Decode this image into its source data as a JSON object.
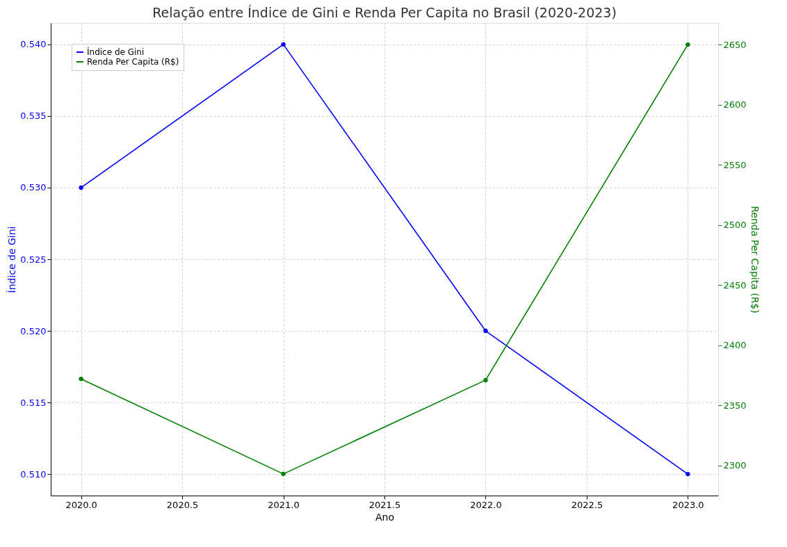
{
  "chart_data": {
    "type": "line",
    "title": "Relação entre Índice de Gini e Renda Per Capita no Brasil (2020-2023)",
    "xlabel": "Ano",
    "ylabel": "Índice de Gini",
    "y2label": "Renda Per Capita (R$)",
    "x": [
      2020,
      2021,
      2022,
      2023
    ],
    "series": [
      {
        "name": "Índice de Gini",
        "color": "#0000ff",
        "values": [
          0.53,
          0.54,
          0.52,
          0.51
        ]
      },
      {
        "name": "Renda Per Capita (R$)",
        "color": "#008000",
        "values": [
          2372,
          2293,
          2371,
          2650
        ],
        "axis": "y2"
      }
    ],
    "xlim": [
      2019.85,
      2023.15
    ],
    "xticks": [
      {
        "value": 2020,
        "label": "2020.0"
      },
      {
        "value": 2020.5,
        "label": "2020.5"
      },
      {
        "value": 2021,
        "label": "2021.0"
      },
      {
        "value": 2021.5,
        "label": "2021.5"
      },
      {
        "value": 2022,
        "label": "2022.0"
      },
      {
        "value": 2022.5,
        "label": "2022.5"
      },
      {
        "value": 2023,
        "label": "2023.0"
      }
    ],
    "ylim": [
      0.5085,
      0.5415
    ],
    "yticks": [
      {
        "value": 0.51,
        "label": "0.510"
      },
      0.515,
      {
        "value": 0.52,
        "label": "0.520"
      },
      0.525,
      {
        "value": 0.53,
        "label": "0.530"
      },
      0.535,
      {
        "value": 0.54,
        "label": "0.540"
      }
    ],
    "y2lim": [
      2275,
      2668
    ],
    "y2ticks": [
      2300,
      2350,
      2400,
      2450,
      2500,
      2550,
      2600,
      2650
    ],
    "grid": true,
    "legend": "top left",
    "marker": "circle",
    "line_style": "solid"
  }
}
